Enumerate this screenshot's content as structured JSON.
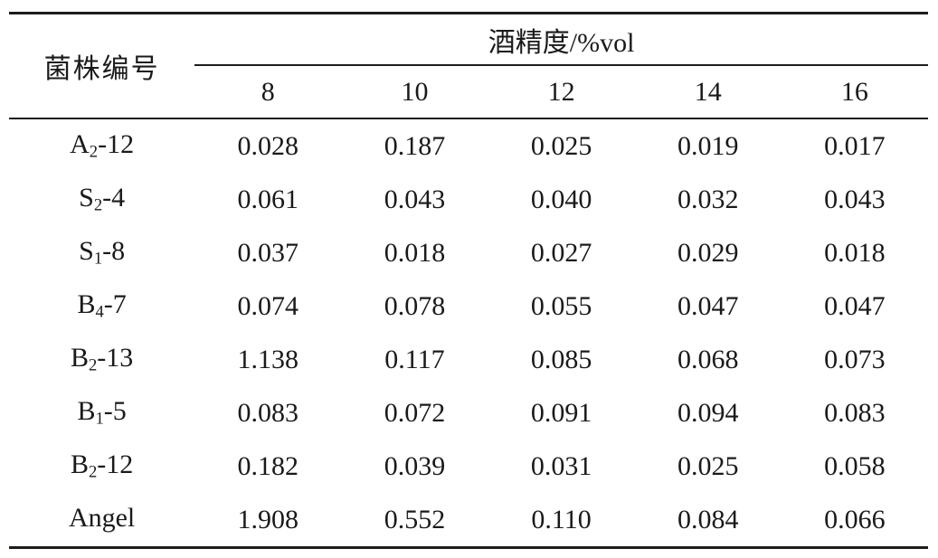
{
  "table": {
    "strain_col_header": "菌株编号",
    "group_header": "酒精度/%vol",
    "sub_headers": [
      "8",
      "10",
      "12",
      "14",
      "16"
    ],
    "rows": [
      {
        "base": "A",
        "sub": "2",
        "rest": "-12",
        "values": [
          "0.028",
          "0.187",
          "0.025",
          "0.019",
          "0.017"
        ]
      },
      {
        "base": "S",
        "sub": "2",
        "rest": "-4",
        "values": [
          "0.061",
          "0.043",
          "0.040",
          "0.032",
          "0.043"
        ]
      },
      {
        "base": "S",
        "sub": "1",
        "rest": "-8",
        "values": [
          "0.037",
          "0.018",
          "0.027",
          "0.029",
          "0.018"
        ]
      },
      {
        "base": "B",
        "sub": "4",
        "rest": "-7",
        "values": [
          "0.074",
          "0.078",
          "0.055",
          "0.047",
          "0.047"
        ]
      },
      {
        "base": "B",
        "sub": "2",
        "rest": "-13",
        "values": [
          "1.138",
          "0.117",
          "0.085",
          "0.068",
          "0.073"
        ]
      },
      {
        "base": "B",
        "sub": "1",
        "rest": "-5",
        "values": [
          "0.083",
          "0.072",
          "0.091",
          "0.094",
          "0.083"
        ]
      },
      {
        "base": "B",
        "sub": "2",
        "rest": "-12",
        "values": [
          "0.182",
          "0.039",
          "0.031",
          "0.025",
          "0.058"
        ]
      },
      {
        "base": "Angel",
        "sub": "",
        "rest": "",
        "values": [
          "1.908",
          "0.552",
          "0.110",
          "0.084",
          "0.066"
        ]
      }
    ]
  },
  "colors": {
    "text": "#1a1a1a",
    "rule": "#1c1c1c",
    "background": "#ffffff"
  }
}
